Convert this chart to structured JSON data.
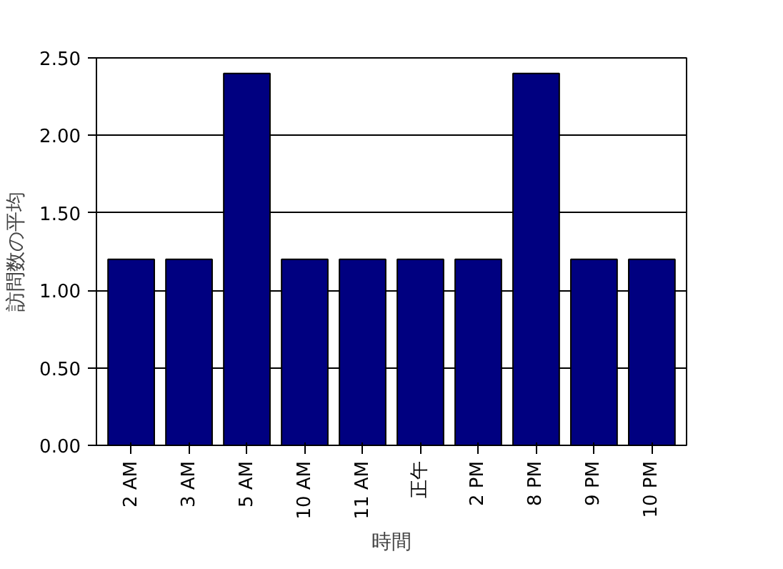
{
  "chart_data": {
    "type": "bar",
    "xlabel": "時間",
    "ylabel": "訪問数の平均",
    "categories": [
      "2 AM",
      "3 AM",
      "5 AM",
      "10 AM",
      "11 AM",
      "正午",
      "2 PM",
      "8 PM",
      "9 PM",
      "10 PM"
    ],
    "values": [
      1.2,
      1.2,
      2.4,
      1.2,
      1.2,
      1.2,
      1.2,
      2.4,
      1.2,
      1.2
    ],
    "color": "#000080",
    "ylim": [
      0,
      2.5
    ],
    "yticks": [
      {
        "value": 0,
        "label": "0.00"
      },
      {
        "value": 0.5,
        "label": "0.50"
      },
      {
        "value": 1,
        "label": "1.00"
      },
      {
        "value": 1.5,
        "label": "1.50"
      },
      {
        "value": 2,
        "label": "2.00"
      },
      {
        "value": 2.5,
        "label": "2.50"
      }
    ],
    "grid": "y"
  }
}
